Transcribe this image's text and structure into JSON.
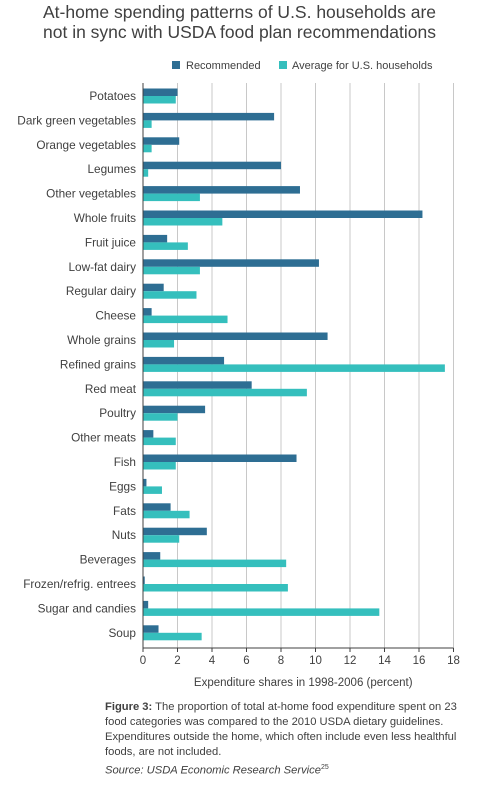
{
  "title_lines": [
    "At-home spending patterns of U.S. households are",
    "not in sync with USDA food plan recommendations"
  ],
  "colors": {
    "recommended": "#2E6E93",
    "average": "#35BFBD",
    "grid": "#c8c8c8",
    "axis": "#404040"
  },
  "caption": {
    "figure_label": "Figure 3:",
    "text": " The proportion of total at-home food expenditure spent on 23 food categories was compared to the 2010 USDA dietary guidelines. Expenditures outside the home, which often include even less healthful foods, are not included.",
    "source": "Source: USDA Economic Research Service",
    "source_ref": "25"
  },
  "chart_data": {
    "type": "bar",
    "orientation": "horizontal",
    "categories": [
      "Potatoes",
      "Dark green vegetables",
      "Orange vegetables",
      "Legumes",
      "Other vegetables",
      "Whole fruits",
      "Fruit juice",
      "Low-fat dairy",
      "Regular dairy",
      "Cheese",
      "Whole grains",
      "Refined grains",
      "Red meat",
      "Poultry",
      "Other meats",
      "Fish",
      "Eggs",
      "Fats",
      "Nuts",
      "Beverages",
      "Frozen/refrig. entrees",
      "Sugar and candies",
      "Soup"
    ],
    "series": [
      {
        "name": "Recommended",
        "values": [
          2.0,
          7.6,
          2.1,
          8.0,
          9.1,
          16.2,
          1.4,
          10.2,
          1.2,
          0.5,
          10.7,
          4.7,
          6.3,
          3.6,
          0.6,
          8.9,
          0.2,
          1.6,
          3.7,
          1.0,
          0.1,
          0.3,
          0.9
        ]
      },
      {
        "name": "Average for U.S. households",
        "values": [
          1.9,
          0.5,
          0.5,
          0.3,
          3.3,
          4.6,
          2.6,
          3.3,
          3.1,
          4.9,
          1.8,
          17.5,
          9.5,
          2.0,
          1.9,
          1.9,
          1.1,
          2.7,
          2.1,
          8.3,
          8.4,
          13.7,
          3.4
        ]
      }
    ],
    "xlabel": "Expenditure shares in 1998-2006 (percent)",
    "xlim": [
      0,
      18
    ],
    "xticks": [
      0,
      2,
      4,
      6,
      8,
      10,
      12,
      14,
      16,
      18
    ],
    "grid": "vertical",
    "legend": "top"
  }
}
